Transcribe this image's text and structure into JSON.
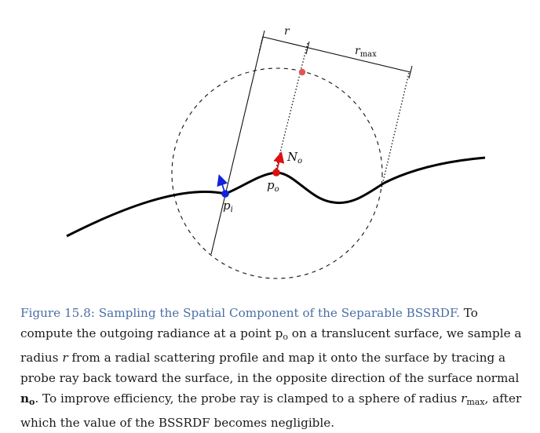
{
  "figure": {
    "labels": {
      "r": "r",
      "r_max_main": "r",
      "r_max_sub": "max",
      "N_o_main": "N",
      "N_o_sub": "o",
      "p_o_main": "p",
      "p_o_sub": "o",
      "p_i_main": "p",
      "p_i_sub": "i"
    },
    "colors": {
      "sample_point": "#e05555",
      "p_o": "#dd1111",
      "p_i": "#1122dd",
      "normal_arrow": "#dd1111",
      "p_i_arrow": "#1122dd",
      "caption_title": "#4a6fa5"
    }
  },
  "caption": {
    "title": "Figure 15.8: Sampling the Spatial Component of the Separable BSSRDF.",
    "t1": " To compute the outgoing radiance at a point p",
    "t1_sub": "o",
    "t2": " on a translucent surface, we sample a radius ",
    "r": "r",
    "t3": " from a radial scattering profile and map it onto the surface by tracing a probe ray back toward the surface, in the opposite direction of the surface normal ",
    "n_main": "n",
    "n_sub": "o",
    "t4": ". To improve efficiency, the probe ray is clamped to a sphere of radius ",
    "rmax_main": "r",
    "rmax_sub": "max",
    "t5": ", after which the value of the BSSRDF becomes negligible."
  }
}
